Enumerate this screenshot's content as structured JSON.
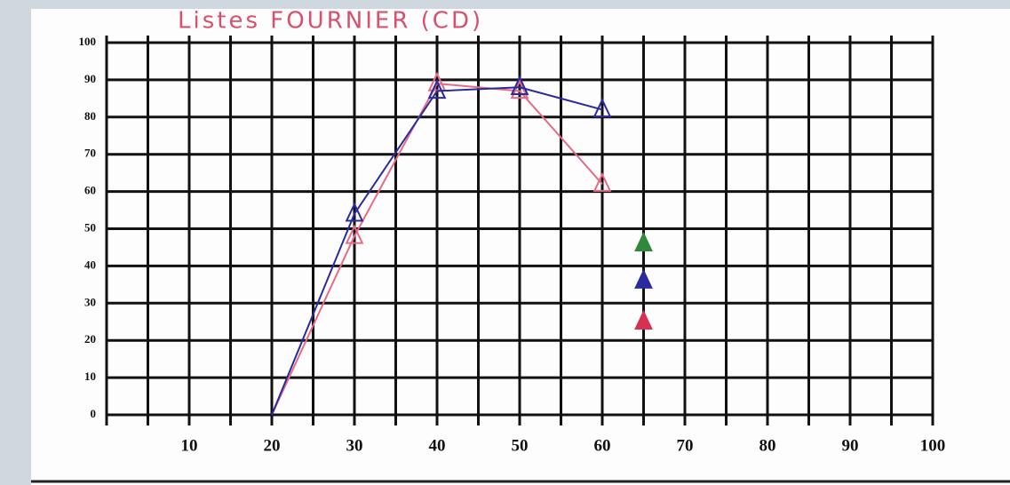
{
  "chart_data": {
    "type": "line",
    "title": "Listes FOURNIER (CD)",
    "x": [
      20,
      30,
      40,
      50,
      60
    ],
    "series": [
      {
        "color": "#e86a86",
        "values": [
          0,
          48,
          89,
          87,
          62
        ]
      },
      {
        "color": "#2b2ba0",
        "values": [
          0,
          54,
          87,
          88,
          82
        ]
      }
    ],
    "points": {
      "x": [
        65,
        65,
        65
      ],
      "values": [
        46,
        36,
        25
      ],
      "colors": [
        "#2e8a3a",
        "#2b2ba0",
        "#d83050"
      ]
    },
    "xlim": [
      0,
      100
    ],
    "xticks": [
      10,
      20,
      30,
      40,
      50,
      60,
      70,
      80,
      90,
      100
    ],
    "xgrid": [
      0,
      5,
      10,
      15,
      20,
      25,
      30,
      35,
      40,
      45,
      50,
      55,
      60,
      65,
      70,
      75,
      80,
      85,
      90,
      95,
      100
    ],
    "ylim": [
      0,
      100
    ],
    "yticks": [
      0,
      10,
      20,
      30,
      40,
      50,
      60,
      70,
      80,
      90,
      100
    ],
    "grid": true
  }
}
